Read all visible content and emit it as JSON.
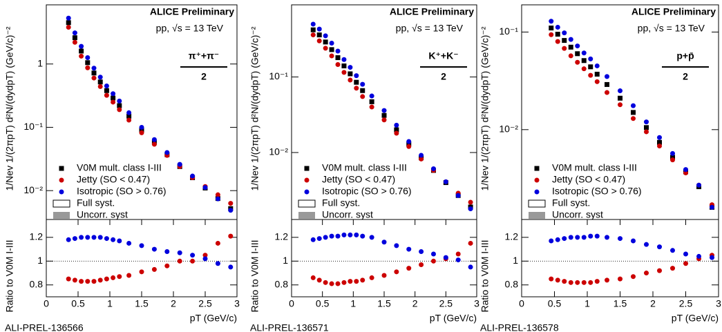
{
  "chart_data": [
    {
      "type": "scatter",
      "log_y": true,
      "y_label": "1/Nev 1/(2πpT) d²N/(dydpT) (GeV/c)⁻²",
      "annotations": [
        "ALICE Preliminary",
        "pp, √s = 13 TeV"
      ],
      "particle": {
        "numerator": "π⁺+π⁻",
        "denominator": "2"
      },
      "watermark": "ALI-PREL-136566",
      "x": [
        0.35,
        0.45,
        0.55,
        0.65,
        0.75,
        0.85,
        0.95,
        1.05,
        1.15,
        1.3,
        1.5,
        1.7,
        1.9,
        2.1,
        2.3,
        2.5,
        2.7,
        2.9
      ],
      "xlim": [
        0,
        3
      ],
      "ylim": [
        0.0035,
        8.6
      ],
      "yticks": [
        {
          "value": 0.01,
          "label": "10⁻²"
        },
        {
          "value": 0.1,
          "label": "10⁻¹"
        },
        1
      ],
      "legend": "lower left",
      "legend_extra": [
        "Full syst.",
        "Uncorr. syst"
      ],
      "series": [
        {
          "name": "V0M mult. class I-III",
          "color": "#000000",
          "marker": "square",
          "values": [
            4.5,
            2.6,
            1.6,
            1.05,
            0.72,
            0.52,
            0.38,
            0.29,
            0.22,
            0.15,
            0.09,
            0.058,
            0.037,
            0.024,
            0.016,
            0.011,
            0.0075,
            0.0052
          ]
        },
        {
          "name": "Jetty (SO < 0.47)",
          "color": "#cc0000",
          "marker": "circle",
          "values": [
            3.8,
            2.2,
            1.33,
            0.87,
            0.6,
            0.44,
            0.32,
            0.25,
            0.19,
            0.13,
            0.082,
            0.054,
            0.036,
            0.024,
            0.016,
            0.0116,
            0.0086,
            0.0063
          ]
        },
        {
          "name": "Isotropic (SO > 0.76)",
          "color": "#0000dd",
          "marker": "circle",
          "values": [
            5.3,
            3.1,
            1.9,
            1.26,
            0.86,
            0.62,
            0.45,
            0.34,
            0.26,
            0.17,
            0.1,
            0.064,
            0.04,
            0.026,
            0.017,
            0.0112,
            0.0074,
            0.0049
          ]
        }
      ]
    },
    {
      "type": "scatter",
      "y_label": "Ratio to V0M I-III",
      "x_label": "pT (GeV/c)",
      "x": [
        0.35,
        0.45,
        0.55,
        0.65,
        0.75,
        0.85,
        0.95,
        1.05,
        1.15,
        1.3,
        1.5,
        1.7,
        1.9,
        2.1,
        2.3,
        2.5,
        2.7,
        2.9
      ],
      "xlim": [
        0,
        3
      ],
      "xticks": [
        0,
        0.5,
        1,
        1.5,
        2,
        2.5,
        3
      ],
      "ylim": [
        0.7,
        1.35
      ],
      "yticks": [
        0.8,
        1,
        1.2
      ],
      "hline": 1,
      "series": [
        {
          "color": "#cc0000",
          "values": [
            0.85,
            0.84,
            0.83,
            0.83,
            0.83,
            0.84,
            0.85,
            0.86,
            0.87,
            0.88,
            0.91,
            0.93,
            0.96,
            1.0,
            1.0,
            1.05,
            1.15,
            1.21
          ]
        },
        {
          "color": "#0000dd",
          "values": [
            1.18,
            1.19,
            1.2,
            1.2,
            1.2,
            1.2,
            1.19,
            1.18,
            1.17,
            1.15,
            1.13,
            1.1,
            1.08,
            1.07,
            1.05,
            1.02,
            0.98,
            0.95
          ]
        }
      ]
    },
    {
      "type": "scatter",
      "log_y": true,
      "y_label": "1/Nev 1/(2πpT) d²N/(dydpT) (GeV/c)⁻²",
      "annotations": [
        "ALICE Preliminary",
        "pp, √s = 13 TeV"
      ],
      "particle": {
        "numerator": "K⁺+K⁻",
        "denominator": "2"
      },
      "watermark": "ALI-PREL-136571",
      "x": [
        0.35,
        0.45,
        0.55,
        0.65,
        0.75,
        0.85,
        0.95,
        1.05,
        1.15,
        1.3,
        1.5,
        1.7,
        1.9,
        2.1,
        2.3,
        2.5,
        2.7,
        2.9
      ],
      "xlim": [
        0,
        3
      ],
      "ylim": [
        0.0013,
        0.9
      ],
      "yticks": [
        {
          "value": 0.01,
          "label": "10⁻²"
        },
        {
          "value": 0.1,
          "label": "10⁻¹"
        }
      ],
      "legend": "lower left",
      "legend_extra": [
        "Full syst.",
        "Uncorr. syst"
      ],
      "series": [
        {
          "name": "V0M mult. class I-III",
          "color": "#000000",
          "marker": "square",
          "values": [
            0.42,
            0.36,
            0.29,
            0.23,
            0.18,
            0.14,
            0.11,
            0.085,
            0.066,
            0.047,
            0.031,
            0.02,
            0.013,
            0.0085,
            0.0058,
            0.004,
            0.0027,
            0.0019
          ]
        },
        {
          "name": "Jetty (SO < 0.47)",
          "color": "#cc0000",
          "marker": "circle",
          "values": [
            0.36,
            0.3,
            0.24,
            0.19,
            0.146,
            0.115,
            0.091,
            0.071,
            0.055,
            0.04,
            0.027,
            0.018,
            0.012,
            0.0082,
            0.0058,
            0.0041,
            0.0029,
            0.0022
          ]
        },
        {
          "name": "Isotropic (SO > 0.76)",
          "color": "#0000dd",
          "marker": "circle",
          "values": [
            0.5,
            0.43,
            0.35,
            0.28,
            0.22,
            0.17,
            0.134,
            0.104,
            0.08,
            0.056,
            0.036,
            0.023,
            0.014,
            0.0092,
            0.0061,
            0.0041,
            0.0027,
            0.0018
          ]
        }
      ]
    },
    {
      "type": "scatter",
      "y_label": "Ratio to V0M I-III",
      "x_label": "pT (GeV/c)",
      "x": [
        0.35,
        0.45,
        0.55,
        0.65,
        0.75,
        0.85,
        0.95,
        1.05,
        1.15,
        1.3,
        1.5,
        1.7,
        1.9,
        2.1,
        2.3,
        2.5,
        2.7,
        2.9
      ],
      "xlim": [
        0,
        3
      ],
      "xticks": [
        0,
        0.5,
        1,
        1.5,
        2,
        2.5,
        3
      ],
      "ylim": [
        0.7,
        1.35
      ],
      "yticks": [
        0.8,
        1,
        1.2
      ],
      "hline": 1,
      "series": [
        {
          "color": "#cc0000",
          "values": [
            0.86,
            0.84,
            0.82,
            0.81,
            0.81,
            0.82,
            0.83,
            0.83,
            0.84,
            0.86,
            0.88,
            0.91,
            0.94,
            0.97,
            1.0,
            1.02,
            1.06,
            1.15
          ]
        },
        {
          "color": "#0000dd",
          "values": [
            1.18,
            1.19,
            1.2,
            1.21,
            1.21,
            1.22,
            1.22,
            1.22,
            1.21,
            1.2,
            1.16,
            1.13,
            1.1,
            1.08,
            1.06,
            1.03,
            1.01,
            0.95
          ]
        }
      ]
    },
    {
      "type": "scatter",
      "log_y": true,
      "y_label": "1/Nev 1/(2πpT) d²N/(dydpT) (GeV/c)⁻²",
      "annotations": [
        "ALICE Preliminary",
        "pp, √s = 13 TeV"
      ],
      "particle": {
        "numerator": "p+p̄",
        "denominator": "2"
      },
      "watermark": "ALI-PREL-136578",
      "x": [
        0.45,
        0.55,
        0.65,
        0.75,
        0.85,
        0.95,
        1.05,
        1.15,
        1.3,
        1.5,
        1.7,
        1.9,
        2.1,
        2.3,
        2.5,
        2.7,
        2.9
      ],
      "xlim": [
        0,
        3
      ],
      "ylim": [
        0.0012,
        0.19
      ],
      "yticks": [
        {
          "value": 0.01,
          "label": "10⁻²"
        },
        {
          "value": 0.1,
          "label": "10⁻¹"
        }
      ],
      "legend": "lower left",
      "legend_extra": [
        "Full syst.",
        "Uncorr. syst"
      ],
      "series": [
        {
          "name": "V0M mult. class I-III",
          "color": "#000000",
          "marker": "square",
          "values": [
            0.11,
            0.095,
            0.082,
            0.07,
            0.06,
            0.051,
            0.044,
            0.037,
            0.029,
            0.021,
            0.015,
            0.0105,
            0.0074,
            0.0052,
            0.0037,
            0.0026,
            0.0016
          ]
        },
        {
          "name": "Jetty (SO < 0.47)",
          "color": "#cc0000",
          "marker": "circle",
          "values": [
            0.094,
            0.08,
            0.068,
            0.057,
            0.049,
            0.042,
            0.036,
            0.031,
            0.024,
            0.018,
            0.013,
            0.0095,
            0.0068,
            0.0049,
            0.0036,
            0.0027,
            0.0017
          ]
        },
        {
          "name": "Isotropic (SO > 0.76)",
          "color": "#0000dd",
          "marker": "circle",
          "values": [
            0.129,
            0.112,
            0.098,
            0.084,
            0.072,
            0.061,
            0.053,
            0.045,
            0.035,
            0.025,
            0.0176,
            0.012,
            0.0083,
            0.0057,
            0.0039,
            0.0027,
            0.0016
          ]
        }
      ]
    },
    {
      "type": "scatter",
      "y_label": "Ratio to V0M I-III",
      "x_label": "pT (GeV/c)",
      "x": [
        0.45,
        0.55,
        0.65,
        0.75,
        0.85,
        0.95,
        1.05,
        1.15,
        1.3,
        1.5,
        1.7,
        1.9,
        2.1,
        2.3,
        2.5,
        2.7,
        2.9
      ],
      "xlim": [
        0,
        3
      ],
      "xticks": [
        0,
        0.5,
        1,
        1.5,
        2,
        2.5,
        3
      ],
      "ylim": [
        0.7,
        1.35
      ],
      "yticks": [
        0.8,
        1,
        1.2
      ],
      "hline": 1,
      "series": [
        {
          "color": "#cc0000",
          "values": [
            0.85,
            0.84,
            0.83,
            0.82,
            0.82,
            0.82,
            0.82,
            0.83,
            0.84,
            0.85,
            0.87,
            0.9,
            0.92,
            0.94,
            0.98,
            1.02,
            1.05
          ]
        },
        {
          "color": "#0000dd",
          "values": [
            1.17,
            1.18,
            1.19,
            1.2,
            1.2,
            1.2,
            1.21,
            1.21,
            1.2,
            1.19,
            1.17,
            1.14,
            1.12,
            1.09,
            1.06,
            1.04,
            1.03
          ]
        }
      ]
    }
  ]
}
